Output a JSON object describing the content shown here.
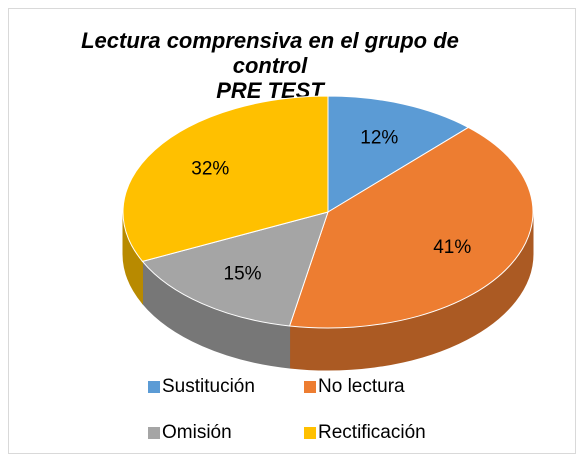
{
  "chart_data": {
    "type": "pie3d",
    "title": "Lectura comprensiva en el grupo de control\nPRE TEST",
    "categories": [
      "Sustitución",
      "No lectura",
      "Omisión",
      "Rectificación"
    ],
    "values": [
      12,
      41,
      15,
      32
    ],
    "value_labels": [
      "12%",
      "41%",
      "15%",
      "32%"
    ],
    "colors": [
      "#5b9bd5",
      "#ed7d31",
      "#a5a5a5",
      "#ffc000"
    ],
    "legend": "bottom"
  }
}
